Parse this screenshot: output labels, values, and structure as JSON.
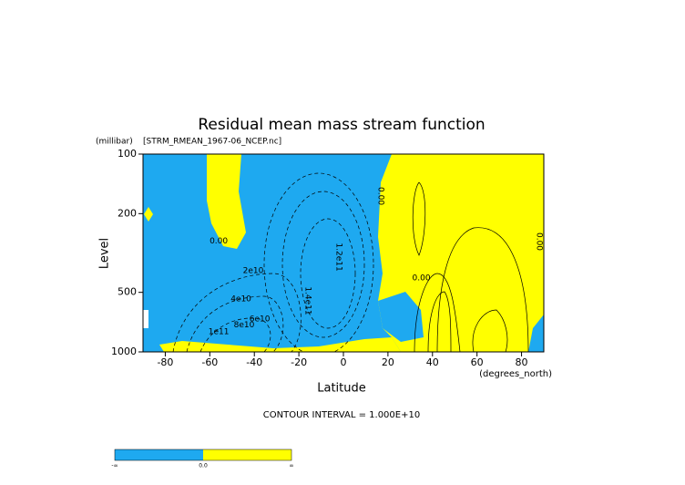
{
  "chart_data": {
    "type": "contour",
    "title": "Residual mean mass stream function",
    "dataset": "[STRM_RMEAN_1967-06_NCEP.nc]",
    "xlabel": "Latitude",
    "ylabel": "Level",
    "x_units": "(degrees_north)",
    "y_units": "(millibar)",
    "xlim": [
      -90,
      90
    ],
    "ylim": [
      1000,
      100
    ],
    "yscale": "log",
    "xticks": [
      -80,
      -60,
      -40,
      -20,
      0,
      20,
      40,
      60,
      80
    ],
    "yticks": [
      100,
      200,
      500,
      1000
    ],
    "contour_interval": "CONTOUR INTERVAL = 1.000E+10",
    "contour_labels": [
      {
        "text": "0.00",
        "lat": -56,
        "level": 275
      },
      {
        "text": "2e10",
        "lat": -40.5,
        "level": 389
      },
      {
        "text": "4e10",
        "lat": -46,
        "level": 541
      },
      {
        "text": "6e10",
        "lat": -37.6,
        "level": 683
      },
      {
        "text": "8e10",
        "lat": -44.6,
        "level": 730
      },
      {
        "text": "1e11",
        "lat": -56,
        "level": 792
      },
      {
        "text": "0.00",
        "lat": 16.8,
        "level": 163
      },
      {
        "text": "1.2e11",
        "lat": -2,
        "level": 332
      },
      {
        "text": "1.4e11",
        "lat": -16,
        "level": 552
      },
      {
        "text": "0.00",
        "lat": 35,
        "level": 423
      },
      {
        "text": "0.00",
        "lat": 88,
        "level": 277
      }
    ],
    "colorbar": {
      "colors": [
        "#1ea9f0",
        "#ffff00"
      ],
      "labels": [
        "-∞",
        "0.0",
        "∞"
      ]
    }
  }
}
